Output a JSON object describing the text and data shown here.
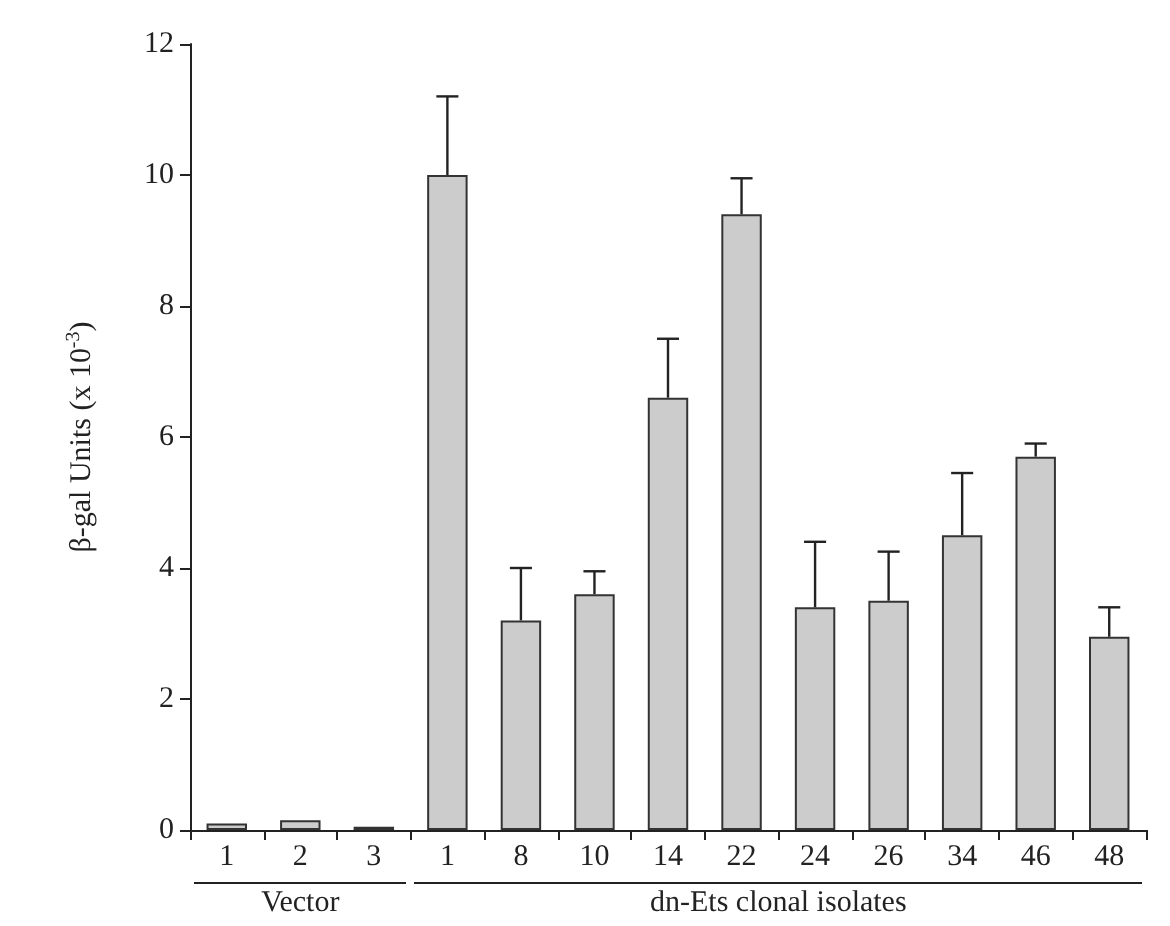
{
  "chart_data": {
    "type": "bar",
    "ylabel": "β-gal Units (x 10$^{-3}$)",
    "categories": [
      "1",
      "2",
      "3",
      "1",
      "8",
      "10",
      "14",
      "22",
      "24",
      "26",
      "34",
      "46",
      "48"
    ],
    "values": [
      0.1,
      0.15,
      0.05,
      10.0,
      3.2,
      3.6,
      6.6,
      9.4,
      3.4,
      3.5,
      4.5,
      5.7,
      2.95
    ],
    "errors": [
      null,
      null,
      null,
      [
        10.0,
        11.2
      ],
      [
        3.2,
        4.0
      ],
      [
        3.6,
        3.95
      ],
      [
        6.6,
        7.5
      ],
      [
        9.4,
        9.95
      ],
      [
        3.4,
        4.4
      ],
      [
        3.5,
        4.25
      ],
      [
        4.5,
        5.45
      ],
      [
        5.7,
        5.9
      ],
      [
        2.95,
        3.4
      ]
    ],
    "color": "#cccccc",
    "ylim": [
      0,
      12
    ],
    "yticks": [
      0,
      2,
      4,
      6,
      8,
      10,
      12
    ],
    "grid": false,
    "annotations": [
      "Vector",
      "dn-Ets clonal isolates"
    ]
  }
}
